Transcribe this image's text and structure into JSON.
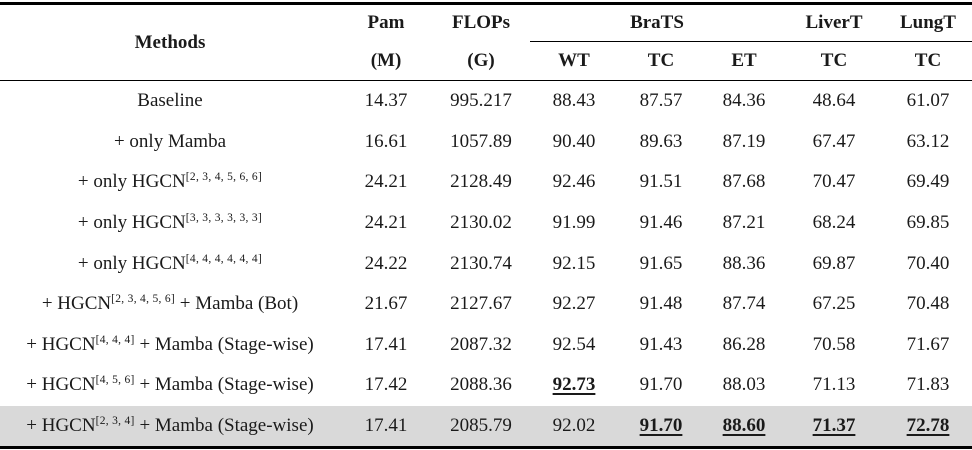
{
  "header": {
    "methods": "Methods",
    "pam": "Pam",
    "pam_unit": "(M)",
    "flops": "FLOPs",
    "flops_unit": "(G)",
    "brats": "BraTS",
    "livert": "LiverT",
    "lungt": "LungT",
    "wt": "WT",
    "tc1": "TC",
    "et": "ET",
    "tc2": "TC",
    "tc3": "TC"
  },
  "rows": [
    {
      "pre": "Baseline",
      "sup": "",
      "post": "",
      "pam": "14.37",
      "flops": "995.217",
      "wt": "88.43",
      "tc": "87.57",
      "et": "84.36",
      "liver": "48.64",
      "lung": "61.07"
    },
    {
      "pre": "+ only Mamba",
      "sup": "",
      "post": "",
      "pam": "16.61",
      "flops": "1057.89",
      "wt": "90.40",
      "tc": "89.63",
      "et": "87.19",
      "liver": "67.47",
      "lung": "63.12"
    },
    {
      "pre": "+ only HGCN",
      "sup": "[2, 3, 4, 5, 6, 6]",
      "post": "",
      "pam": "24.21",
      "flops": "2128.49",
      "wt": "92.46",
      "tc": "91.51",
      "et": "87.68",
      "liver": "70.47",
      "lung": "69.49"
    },
    {
      "pre": "+ only HGCN",
      "sup": "[3, 3, 3, 3, 3, 3]",
      "post": "",
      "pam": "24.21",
      "flops": "2130.02",
      "wt": "91.99",
      "tc": "91.46",
      "et": "87.21",
      "liver": "68.24",
      "lung": "69.85"
    },
    {
      "pre": "+ only HGCN",
      "sup": "[4, 4, 4, 4, 4, 4]",
      "post": "",
      "pam": "24.22",
      "flops": "2130.74",
      "wt": "92.15",
      "tc": "91.65",
      "et": "88.36",
      "liver": "69.87",
      "lung": "70.40"
    },
    {
      "pre": "+ HGCN",
      "sup": "[2, 3, 4, 5, 6]",
      "post": " + Mamba (Bot)",
      "pam": "21.67",
      "flops": "2127.67",
      "wt": "92.27",
      "tc": "91.48",
      "et": "87.74",
      "liver": "67.25",
      "lung": "70.48"
    },
    {
      "pre": "+ HGCN",
      "sup": "[4, 4, 4]",
      "post": " + Mamba (Stage-wise)",
      "pam": "17.41",
      "flops": "2087.32",
      "wt": "92.54",
      "tc": "91.43",
      "et": "86.28",
      "liver": "70.58",
      "lung": "71.67"
    },
    {
      "pre": "+ HGCN",
      "sup": "[4, 5, 6]",
      "post": " + Mamba (Stage-wise)",
      "pam": "17.42",
      "flops": "2088.36",
      "wt": "92.73",
      "tc": "91.70",
      "et": "88.03",
      "liver": "71.13",
      "lung": "71.83"
    },
    {
      "pre": "+ HGCN",
      "sup": "[2, 3, 4]",
      "post": " + Mamba (Stage-wise)",
      "pam": "17.41",
      "flops": "2085.79",
      "wt": "92.02",
      "tc": "91.70",
      "et": "88.60",
      "liver": "71.37",
      "lung": "72.78"
    }
  ]
}
